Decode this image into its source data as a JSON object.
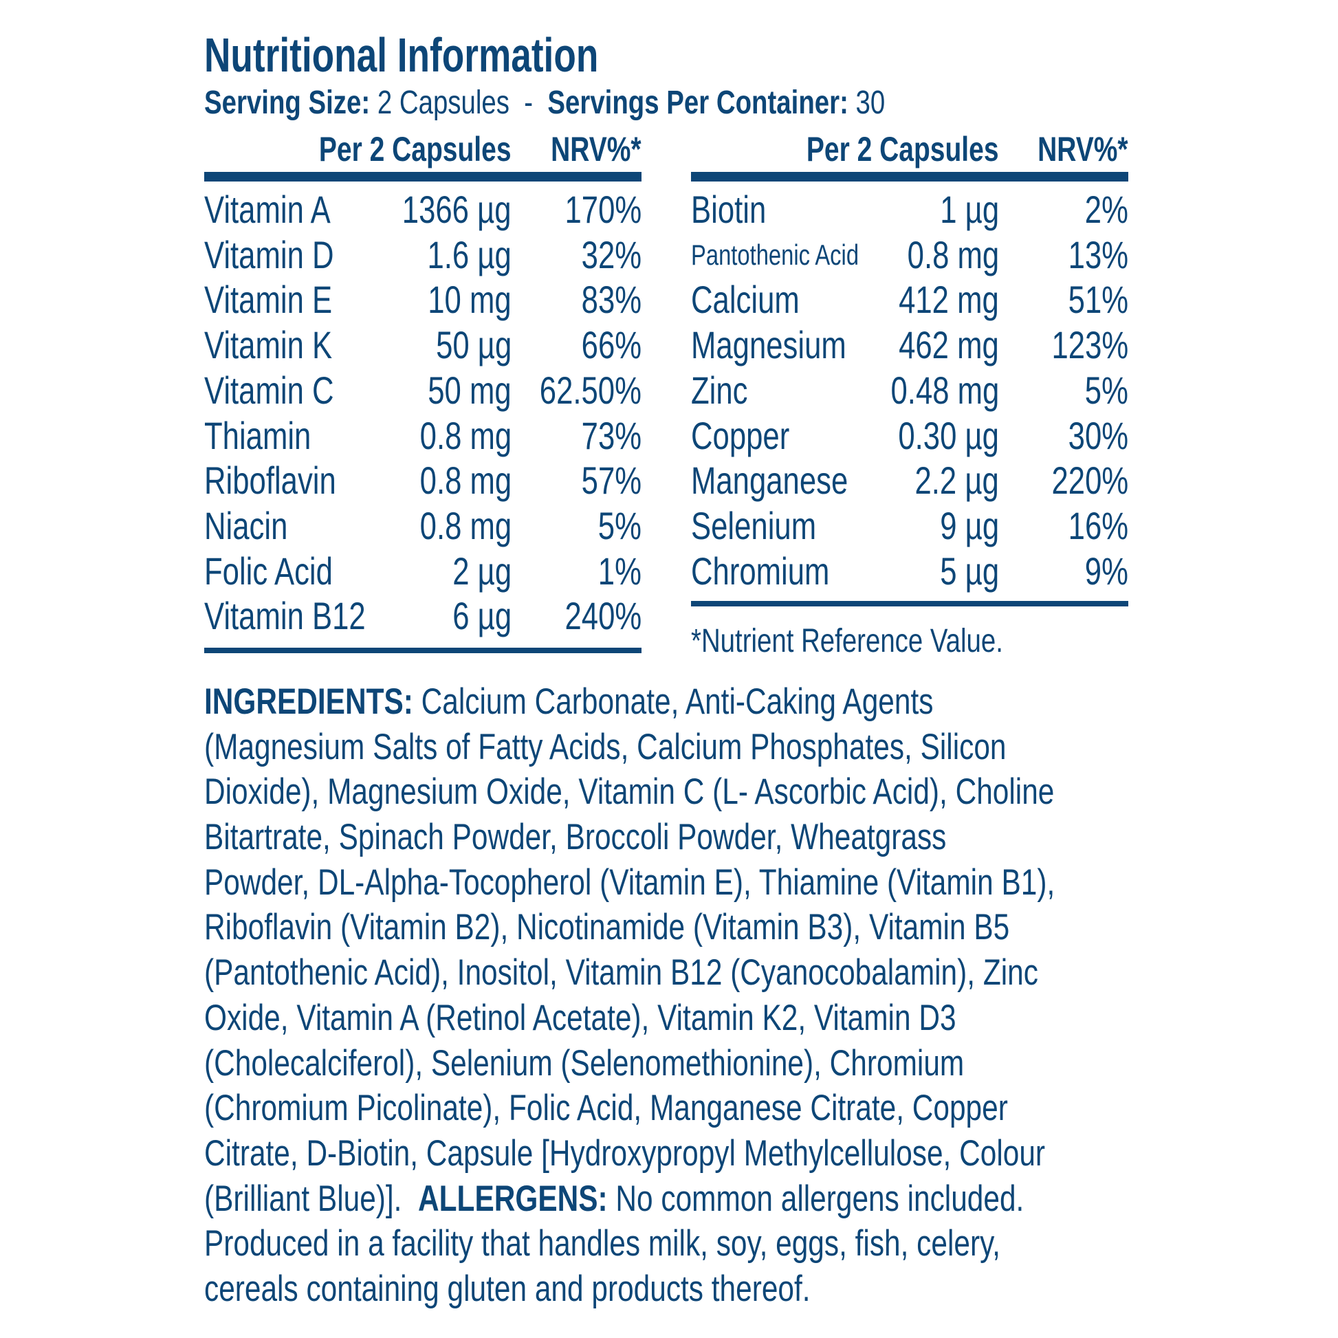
{
  "title": "Nutritional Information",
  "serving": {
    "size_label": "Serving Size:",
    "size_value": "2 Capsules",
    "separator": "-",
    "per_container_label": "Servings Per Container:",
    "per_container_value": "30"
  },
  "colors": {
    "text": "#0d4677"
  },
  "left_table": {
    "headers": [
      "Per 2 Capsules",
      "NRV%*"
    ],
    "rows": [
      [
        "Vitamin A",
        "1366 µg",
        "170%"
      ],
      [
        "Vitamin D",
        "1.6 µg",
        "32%"
      ],
      [
        "Vitamin E",
        "10 mg",
        "83%"
      ],
      [
        "Vitamin K",
        "50 µg",
        "66%"
      ],
      [
        "Vitamin C",
        "50 mg",
        "62.50%"
      ],
      [
        "Thiamin",
        "0.8 mg",
        "73%"
      ],
      [
        "Riboflavin",
        "0.8 mg",
        "57%"
      ],
      [
        "Niacin",
        "0.8 mg",
        "5%"
      ],
      [
        "Folic Acid",
        "2 µg",
        "1%"
      ],
      [
        "Vitamin B12",
        "6 µg",
        "240%"
      ]
    ]
  },
  "right_table": {
    "headers": [
      "Per 2 Capsules",
      "NRV%*"
    ],
    "rows": [
      [
        "Biotin",
        "1 µg",
        "2%"
      ],
      [
        "Pantothenic Acid",
        "0.8 mg",
        "13%"
      ],
      [
        "Calcium",
        "412 mg",
        "51%"
      ],
      [
        "Magnesium",
        "462 mg",
        "123%"
      ],
      [
        "Zinc",
        "0.48 mg",
        "5%"
      ],
      [
        "Copper",
        "0.30 µg",
        "30%"
      ],
      [
        "Manganese",
        "2.2 µg",
        "220%"
      ],
      [
        "Selenium",
        "9 µg",
        "16%"
      ],
      [
        "Chromium",
        "5 µg",
        "9%"
      ]
    ]
  },
  "footnote": "*Nutrient Reference Value.",
  "ingredients": {
    "label": "INGREDIENTS:",
    "allergens_label": "ALLERGENS:",
    "lines": [
      " Calcium Carbonate, Anti-Caking Agents",
      "(Magnesium Salts of Fatty Acids, Calcium Phosphates, Silicon",
      "Dioxide), Magnesium Oxide, Vitamin C (L- Ascorbic Acid), Choline",
      "Bitartrate, Spinach Powder, Broccoli Powder, Wheatgrass",
      "Powder, DL-Alpha-Tocopherol (Vitamin E), Thiamine (Vitamin B1),",
      "Riboflavin (Vitamin B2), Nicotinamide (Vitamin B3), Vitamin B5",
      "(Pantothenic Acid), Inositol, Vitamin B12 (Cyanocobalamin), Zinc",
      "Oxide, Vitamin A (Retinol Acetate), Vitamin K2, Vitamin D3",
      "(Cholecalciferol), Selenium (Selenomethionine), Chromium",
      "(Chromium Picolinate), Folic Acid, Manganese Citrate, Copper",
      "Citrate, D-Biotin, Capsule [Hydroxypropyl Methylcellulose, Colour",
      "(Brilliant Blue)].  "
    ],
    "allergens_text": " No common allergens included.",
    "after_lines": [
      "Produced in a facility that handles milk, soy, eggs, fish, celery,",
      "cereals containing gluten and products thereof."
    ]
  }
}
